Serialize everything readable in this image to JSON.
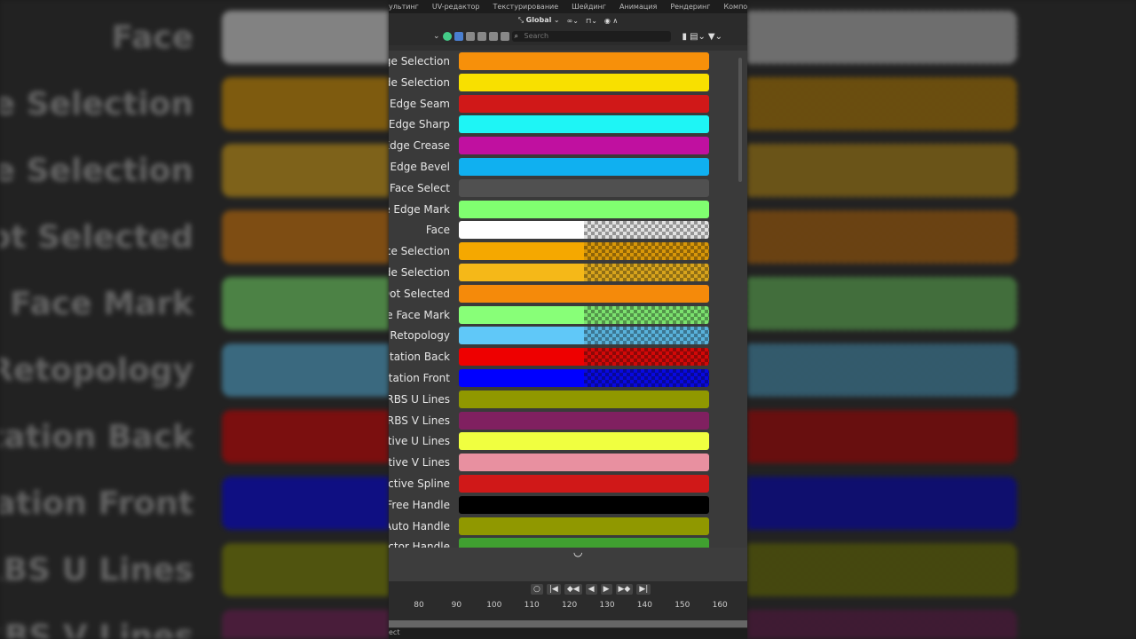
{
  "workspace_tabs": [
    "ультинг",
    "UV-редактор",
    "Текстурирование",
    "Шейдинг",
    "Анимация",
    "Рендеринг",
    "Композитин"
  ],
  "header": {
    "orientation": "Global"
  },
  "search": {
    "placeholder": "Search"
  },
  "theme_rows": [
    {
      "label": "ge Selection",
      "color": "#f7900a",
      "alpha": false
    },
    {
      "label": "de Selection",
      "color": "#f8e000",
      "alpha": false
    },
    {
      "label": "Edge Seam",
      "color": "#d01818",
      "alpha": false
    },
    {
      "label": "Edge Sharp",
      "color": "#1ef5f5",
      "alpha": false
    },
    {
      "label": "Edge Crease",
      "color": "#c010a0",
      "alpha": false
    },
    {
      "label": "Edge Bevel",
      "color": "#10b0f0",
      "alpha": false
    },
    {
      "label": "V Face Select",
      "color": "#505050",
      "alpha": false
    },
    {
      "label": "e Edge Mark",
      "color": "#80ff70",
      "alpha": false
    },
    {
      "label": "Face",
      "color": "#ffffff",
      "alpha": true
    },
    {
      "label": "ce Selection",
      "color": "#f5a800",
      "alpha": true
    },
    {
      "label": "de Selection",
      "color": "#f5b818",
      "alpha": true
    },
    {
      "label": "Dot Selected",
      "color": "#f58a0a",
      "alpha": false
    },
    {
      "label": "le Face Mark",
      "color": "#88ff78",
      "alpha": true
    },
    {
      "label": "Retopology",
      "color": "#60c8f8",
      "alpha": true
    },
    {
      "label": "ntation Back",
      "color": "#ee0000",
      "alpha": true
    },
    {
      "label": "ntation Front",
      "color": "#0000ff",
      "alpha": true
    },
    {
      "label": "IRBS U Lines",
      "color": "#909800",
      "alpha": false
    },
    {
      "label": "IRBS V Lines",
      "color": "#802060",
      "alpha": false
    },
    {
      "label": "ctive U Lines",
      "color": "#f0ff40",
      "alpha": false
    },
    {
      "label": "ctive V Lines",
      "color": "#e890a0",
      "alpha": false
    },
    {
      "label": "Active Spline",
      "color": "#d01818",
      "alpha": false
    },
    {
      "label": "Free Handle",
      "color": "#000000",
      "alpha": false
    },
    {
      "label": "Auto Handle",
      "color": "#909800",
      "alpha": false
    },
    {
      "label": "ector Handle",
      "color": "#40a030",
      "alpha": false
    }
  ],
  "background_left": [
    "Face",
    "ce Selection",
    "de Selection",
    "Dot Selected",
    "le Face Mark",
    "Retopology",
    "ntation Back",
    "ntation Front",
    "URBS U Lines",
    "URBS V Lines"
  ],
  "timeline": {
    "ticks": [
      "80",
      "90",
      "100",
      "110",
      "120",
      "130",
      "140",
      "150",
      "160"
    ]
  },
  "status": {
    "text": "ect"
  }
}
